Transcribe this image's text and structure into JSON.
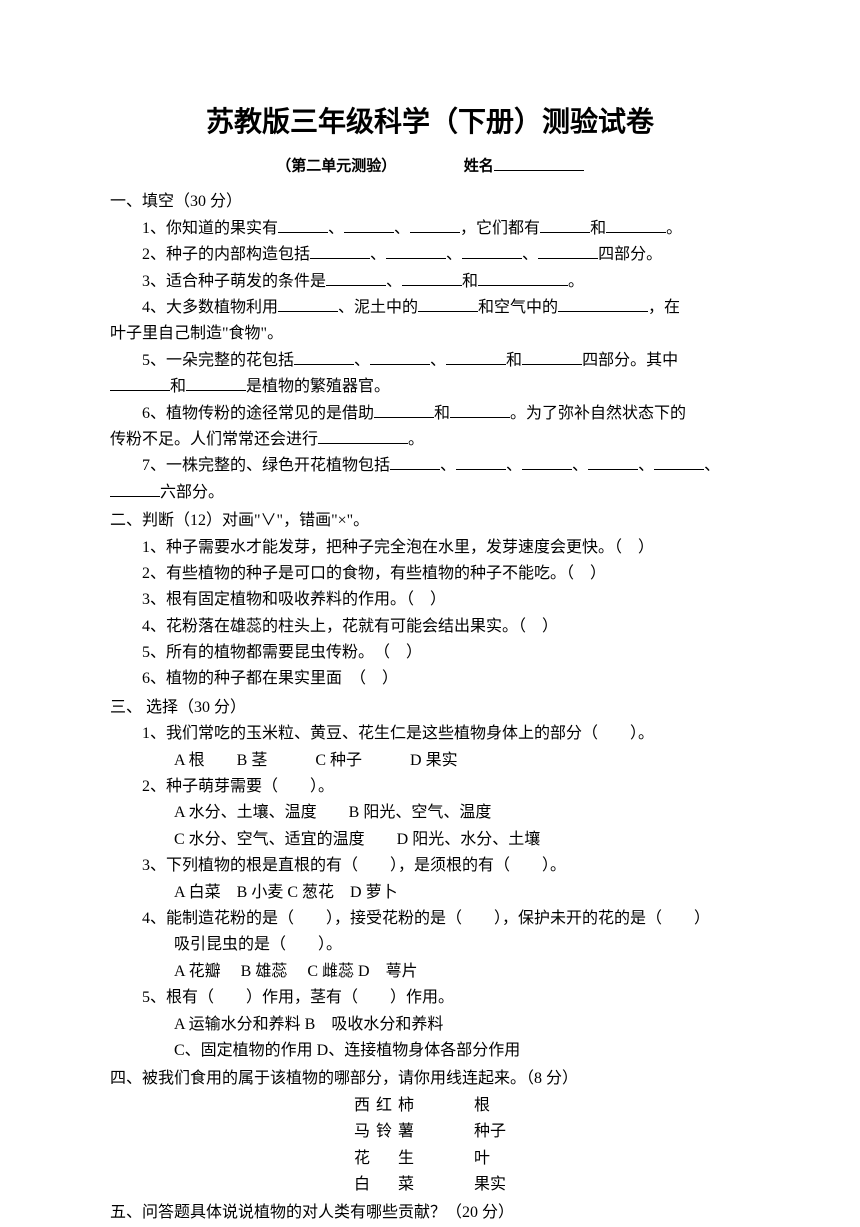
{
  "title": "苏教版三年级科学（下册）测验试卷",
  "subtitle_left": "（第二单元测验）",
  "subtitle_name_label": "姓名",
  "sections": {
    "s1": {
      "header": "一、填空（30 分）",
      "q1a": "1、你知道的果实有",
      "q1b": "、",
      "q1c": "、",
      "q1d": "，它们都有",
      "q1e": "和",
      "q1f": "。",
      "q2a": "2、种子的内部构造包括",
      "q2sep": "、",
      "q2end": "四部分。",
      "q3a": "3、适合种子萌发的条件是",
      "q3and": "和",
      "q3end": "。",
      "q4a": "4、大多数植物利用",
      "q4b": "、泥土中的",
      "q4c": "和空气中的",
      "q4d": "，在",
      "q4e": "叶子里自己制造\"食物\"。",
      "q5a": "5、一朵完整的花包括",
      "q5sep": "、",
      "q5and": "和",
      "q5b": "四部分。其中",
      "q5c": "和",
      "q5d": "是植物的繁殖器官。",
      "q6a": "6、植物传粉的途径常见的是借助",
      "q6b": "和",
      "q6c": "。为了弥补自然状态下的",
      "q6d": "传粉不足。人们常常还会进行",
      "q6e": "。",
      "q7a": "7、一株完整的、绿色开花植物包括",
      "q7sep": "、",
      "q7end": "六部分。"
    },
    "s2": {
      "header": "二、判断（12）对画\"∨\"，错画\"×\"。",
      "q1": "1、种子需要水才能发芽，把种子完全泡在水里，发芽速度会更快。（　）",
      "q2": "2、有些植物的种子是可口的食物，有些植物的种子不能吃。（　）",
      "q3": "3、根有固定植物和吸收养料的作用。（　）",
      "q4": "4、花粉落在雄蕊的柱头上，花就有可能会结出果实。（　）",
      "q5": "5、所有的植物都需要昆虫传粉。　（　）",
      "q6": "6、植物的种子都在果实里面　（　）"
    },
    "s3": {
      "header": "三、 选择（30 分）",
      "q1": "1、我们常吃的玉米粒、黄豆、花生仁是这些植物身体上的部分（　　）。",
      "q1o": "A 根　　B 茎　　　C 种子　　　D 果实",
      "q2": "2、种子萌芽需要（　　）。",
      "q2o1": "A 水分、土壤、温度　　B 阳光、空气、温度",
      "q2o2": "C 水分、空气、适宜的温度　　D 阳光、水分、土壤",
      "q3": "3、下列植物的根是直根的有（　　），是须根的有（　　）。",
      "q3o": "A 白菜　B 小麦 C 葱花　D 萝卜",
      "q4": "4、能制造花粉的是（　　），接受花粉的是（　　），保护未开的花的是（　　）",
      "q4b": "吸引昆虫的是（　　）。",
      "q4o": "A 花瓣　 B 雄蕊　 C 雌蕊 D　萼片",
      "q5": "5、根有（　　）作用，茎有（　　）作用。",
      "q5o1": "A 运输水分和养料 B　吸收水分和养料",
      "q5o2": "C、固定植物的作用 D、连接植物身体各部分作用"
    },
    "s4": {
      "header": "四、被我们食用的属于该植物的哪部分，请你用线连起来。（8 分）",
      "left": [
        "西红柿",
        "马铃薯",
        "花　生",
        "白　菜"
      ],
      "right": [
        "根",
        "种子",
        "叶",
        "果实"
      ]
    },
    "s5": {
      "header": "五、问答题具体说说植物的对人类有哪些贡献？（20 分）"
    }
  }
}
